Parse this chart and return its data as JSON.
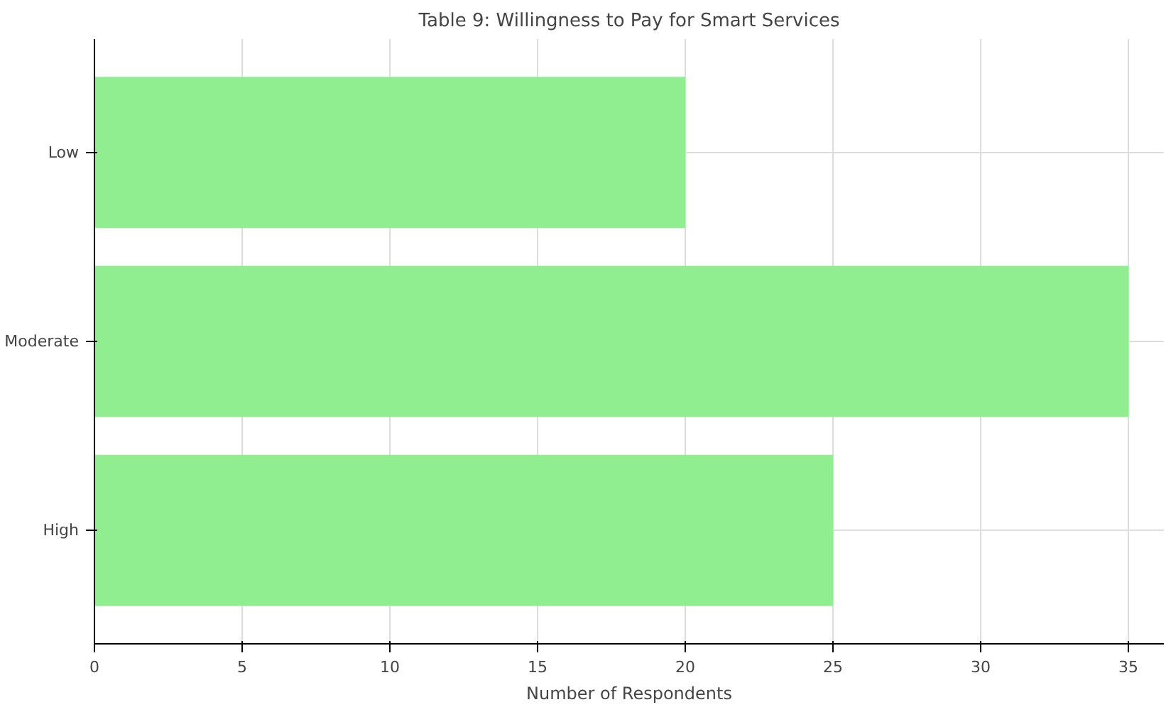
{
  "chart_data": {
    "type": "bar",
    "orientation": "horizontal",
    "title": "Table 9: Willingness to Pay for Smart Services",
    "xlabel": "Number of Respondents",
    "categories": [
      "Low",
      "Moderate",
      "High"
    ],
    "values": [
      20,
      35,
      25
    ],
    "color": "#90ee90",
    "xlim": [
      0,
      36.2
    ],
    "xticks": [
      0,
      5,
      10,
      15,
      20,
      25,
      30,
      35
    ],
    "grid": true
  }
}
